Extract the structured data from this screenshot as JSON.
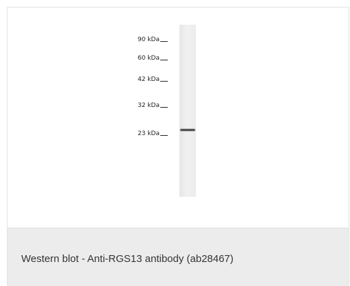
{
  "figure": {
    "markers": [
      {
        "label": "90 kDa"
      },
      {
        "label": "60 kDa"
      },
      {
        "label": "42 kDa"
      },
      {
        "label": "32 kDa"
      },
      {
        "label": "23 kDa"
      }
    ],
    "caption": "Western blot - Anti-RGS13 antibody (ab28467)"
  },
  "colors": {
    "caption_background": "#ececec",
    "border": "#e2e2e2",
    "band": "#3c3c3c"
  }
}
